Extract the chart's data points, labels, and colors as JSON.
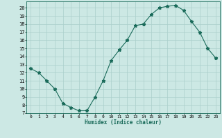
{
  "x": [
    0,
    1,
    2,
    3,
    4,
    5,
    6,
    7,
    8,
    9,
    10,
    11,
    12,
    13,
    14,
    15,
    16,
    17,
    18,
    19,
    20,
    21,
    22,
    23
  ],
  "y": [
    12.5,
    12.0,
    11.0,
    10.0,
    8.2,
    7.7,
    7.3,
    7.3,
    9.0,
    11.0,
    13.5,
    14.8,
    16.0,
    17.8,
    18.0,
    19.2,
    20.0,
    20.2,
    20.3,
    19.7,
    18.3,
    17.0,
    15.0,
    13.8
  ],
  "line_color": "#1a6b5a",
  "marker": "*",
  "marker_size": 3.5,
  "bg_color": "#cce8e4",
  "grid_color": "#aacfcb",
  "xlabel": "Humidex (Indice chaleur)",
  "xlim": [
    -0.5,
    23.5
  ],
  "ylim": [
    7,
    20.8
  ],
  "yticks": [
    7,
    8,
    9,
    10,
    11,
    12,
    13,
    14,
    15,
    16,
    17,
    18,
    19,
    20
  ],
  "xticks": [
    0,
    1,
    2,
    3,
    4,
    5,
    6,
    7,
    8,
    9,
    10,
    11,
    12,
    13,
    14,
    15,
    16,
    17,
    18,
    19,
    20,
    21,
    22,
    23
  ]
}
